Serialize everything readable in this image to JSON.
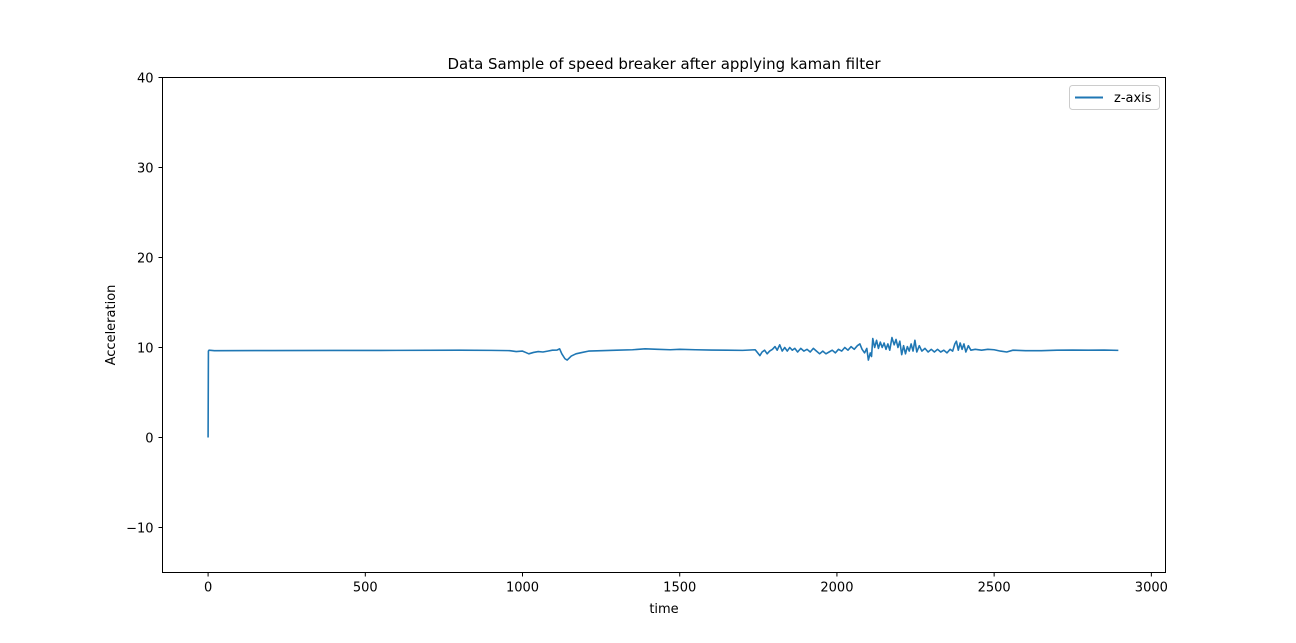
{
  "chart_data": {
    "type": "line",
    "title": "Data Sample of speed breaker after applying kaman filter",
    "xlabel": "time",
    "ylabel": "Acceleration",
    "xlim": [
      -145,
      3045
    ],
    "ylim": [
      -15,
      40
    ],
    "xticks": [
      0,
      500,
      1000,
      1500,
      2000,
      2500,
      3000
    ],
    "yticks": [
      -10,
      0,
      10,
      20,
      30,
      40
    ],
    "xtick_labels": [
      "0",
      "500",
      "1000",
      "1500",
      "2000",
      "2500",
      "3000"
    ],
    "ytick_labels": [
      "−10",
      "0",
      "10",
      "20",
      "30",
      "40"
    ],
    "grid": false,
    "legend": {
      "placement": "top-right",
      "entries": [
        "z-axis"
      ]
    },
    "series": [
      {
        "name": "z-axis",
        "color": "#1f77b4",
        "points": [
          [
            0,
            0
          ],
          [
            1,
            9.6
          ],
          [
            3,
            9.7
          ],
          [
            20,
            9.65
          ],
          [
            200,
            9.66
          ],
          [
            400,
            9.67
          ],
          [
            600,
            9.68
          ],
          [
            800,
            9.7
          ],
          [
            900,
            9.68
          ],
          [
            960,
            9.65
          ],
          [
            980,
            9.55
          ],
          [
            1000,
            9.6
          ],
          [
            1010,
            9.45
          ],
          [
            1020,
            9.3
          ],
          [
            1035,
            9.45
          ],
          [
            1050,
            9.55
          ],
          [
            1065,
            9.5
          ],
          [
            1080,
            9.6
          ],
          [
            1095,
            9.7
          ],
          [
            1110,
            9.72
          ],
          [
            1118,
            9.85
          ],
          [
            1125,
            9.3
          ],
          [
            1135,
            8.75
          ],
          [
            1142,
            8.6
          ],
          [
            1155,
            9.05
          ],
          [
            1170,
            9.3
          ],
          [
            1190,
            9.45
          ],
          [
            1210,
            9.6
          ],
          [
            1250,
            9.65
          ],
          [
            1300,
            9.7
          ],
          [
            1350,
            9.75
          ],
          [
            1390,
            9.85
          ],
          [
            1430,
            9.8
          ],
          [
            1470,
            9.75
          ],
          [
            1500,
            9.8
          ],
          [
            1550,
            9.75
          ],
          [
            1600,
            9.72
          ],
          [
            1650,
            9.7
          ],
          [
            1700,
            9.68
          ],
          [
            1740,
            9.75
          ],
          [
            1748,
            9.4
          ],
          [
            1755,
            9.1
          ],
          [
            1762,
            9.5
          ],
          [
            1770,
            9.7
          ],
          [
            1778,
            9.3
          ],
          [
            1786,
            9.6
          ],
          [
            1795,
            9.8
          ],
          [
            1803,
            10.1
          ],
          [
            1810,
            9.7
          ],
          [
            1818,
            10.3
          ],
          [
            1826,
            9.6
          ],
          [
            1834,
            10.0
          ],
          [
            1842,
            9.6
          ],
          [
            1850,
            10.0
          ],
          [
            1858,
            9.7
          ],
          [
            1866,
            9.9
          ],
          [
            1875,
            9.5
          ],
          [
            1885,
            9.9
          ],
          [
            1895,
            9.6
          ],
          [
            1905,
            9.8
          ],
          [
            1915,
            9.5
          ],
          [
            1925,
            9.9
          ],
          [
            1935,
            9.6
          ],
          [
            1945,
            9.3
          ],
          [
            1955,
            9.6
          ],
          [
            1965,
            9.3
          ],
          [
            1975,
            9.5
          ],
          [
            1985,
            9.7
          ],
          [
            1995,
            9.4
          ],
          [
            2005,
            9.8
          ],
          [
            2015,
            9.6
          ],
          [
            2025,
            10.0
          ],
          [
            2035,
            9.7
          ],
          [
            2045,
            10.1
          ],
          [
            2055,
            9.8
          ],
          [
            2065,
            10.2
          ],
          [
            2073,
            10.4
          ],
          [
            2080,
            9.8
          ],
          [
            2088,
            9.4
          ],
          [
            2095,
            9.9
          ],
          [
            2100,
            8.6
          ],
          [
            2106,
            9.4
          ],
          [
            2110,
            9.0
          ],
          [
            2114,
            11.0
          ],
          [
            2120,
            10.0
          ],
          [
            2126,
            10.8
          ],
          [
            2132,
            9.9
          ],
          [
            2138,
            10.6
          ],
          [
            2144,
            10.0
          ],
          [
            2150,
            10.5
          ],
          [
            2156,
            9.8
          ],
          [
            2162,
            10.4
          ],
          [
            2168,
            9.7
          ],
          [
            2175,
            11.1
          ],
          [
            2182,
            10.3
          ],
          [
            2188,
            10.9
          ],
          [
            2194,
            10.0
          ],
          [
            2200,
            10.7
          ],
          [
            2206,
            9.2
          ],
          [
            2212,
            10.2
          ],
          [
            2218,
            9.3
          ],
          [
            2224,
            10.1
          ],
          [
            2230,
            9.6
          ],
          [
            2236,
            10.4
          ],
          [
            2242,
            9.6
          ],
          [
            2248,
            10.8
          ],
          [
            2254,
            9.5
          ],
          [
            2262,
            10.2
          ],
          [
            2270,
            9.6
          ],
          [
            2280,
            9.9
          ],
          [
            2290,
            9.5
          ],
          [
            2300,
            9.8
          ],
          [
            2310,
            9.5
          ],
          [
            2320,
            9.8
          ],
          [
            2330,
            9.5
          ],
          [
            2340,
            9.7
          ],
          [
            2350,
            9.4
          ],
          [
            2360,
            9.8
          ],
          [
            2368,
            9.6
          ],
          [
            2375,
            10.4
          ],
          [
            2380,
            10.7
          ],
          [
            2386,
            9.7
          ],
          [
            2392,
            10.5
          ],
          [
            2398,
            9.8
          ],
          [
            2404,
            10.4
          ],
          [
            2410,
            9.5
          ],
          [
            2418,
            10.2
          ],
          [
            2426,
            9.7
          ],
          [
            2440,
            9.8
          ],
          [
            2460,
            9.7
          ],
          [
            2480,
            9.8
          ],
          [
            2500,
            9.75
          ],
          [
            2520,
            9.6
          ],
          [
            2540,
            9.5
          ],
          [
            2560,
            9.7
          ],
          [
            2600,
            9.65
          ],
          [
            2650,
            9.65
          ],
          [
            2700,
            9.7
          ],
          [
            2750,
            9.72
          ],
          [
            2800,
            9.7
          ],
          [
            2850,
            9.72
          ],
          [
            2895,
            9.68
          ]
        ]
      }
    ]
  }
}
